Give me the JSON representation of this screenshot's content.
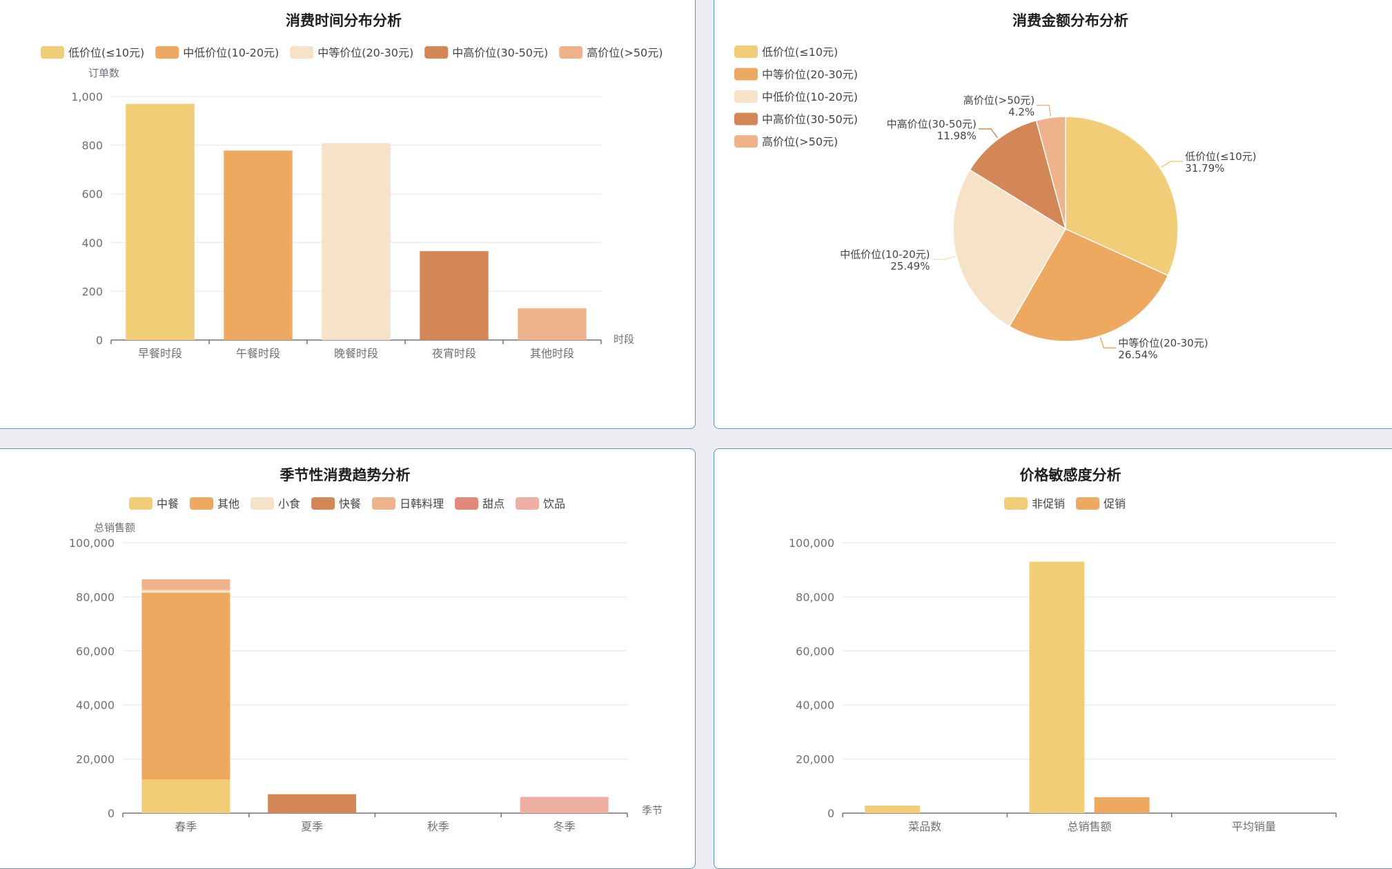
{
  "chart_data": [
    {
      "id": "time",
      "type": "bar",
      "title": "消费时间分布分析",
      "ylabel": "订单数",
      "xlabel": "时段",
      "legend": [
        "低价位(≤10元)",
        "中低价位(10-20元)",
        "中等价位(20-30元)",
        "中高价位(30-50元)",
        "高价位(>50元)"
      ],
      "categories": [
        "早餐时段",
        "午餐时段",
        "晚餐时段",
        "夜宵时段",
        "其他时段"
      ],
      "values": [
        970,
        778,
        809,
        365,
        130
      ],
      "ylim": [
        0,
        1000
      ],
      "yticks": [
        "0",
        "200",
        "400",
        "600",
        "800",
        "1,000"
      ],
      "grid": true,
      "legend_position": "top"
    },
    {
      "id": "amount",
      "type": "pie",
      "title": "消费金额分布分析",
      "legend": [
        "低价位(≤10元)",
        "中等价位(20-30元)",
        "中低价位(10-20元)",
        "中高价位(30-50元)",
        "高价位(>50元)"
      ],
      "slices": [
        {
          "name": "低价位(≤10元)",
          "value": 31.79,
          "label": "31.79%"
        },
        {
          "name": "中等价位(20-30元)",
          "value": 26.54,
          "label": "26.54%"
        },
        {
          "name": "中低价位(10-20元)",
          "value": 25.49,
          "label": "25.49%"
        },
        {
          "name": "中高价位(30-50元)",
          "value": 11.98,
          "label": "11.98%"
        },
        {
          "name": "高价位(>50元)",
          "value": 4.2,
          "label": "4.2%"
        }
      ],
      "legend_position": "top-left"
    },
    {
      "id": "season",
      "type": "bar",
      "stacked": true,
      "title": "季节性消费趋势分析",
      "ylabel": "总销售额",
      "xlabel": "季节",
      "legend": [
        "中餐",
        "其他",
        "小食",
        "快餐",
        "日韩料理",
        "甜点",
        "饮品"
      ],
      "categories": [
        "春季",
        "夏季",
        "秋季",
        "冬季"
      ],
      "series": [
        {
          "name": "中餐",
          "values": [
            12500,
            0,
            0,
            0
          ]
        },
        {
          "name": "其他",
          "values": [
            69000,
            0,
            0,
            0
          ]
        },
        {
          "name": "小食",
          "values": [
            1000,
            0,
            0,
            0
          ]
        },
        {
          "name": "快餐",
          "values": [
            0,
            7000,
            0,
            0
          ]
        },
        {
          "name": "日韩料理",
          "values": [
            4000,
            0,
            0,
            0
          ]
        },
        {
          "name": "甜点",
          "values": [
            0,
            0,
            0,
            0
          ]
        },
        {
          "name": "饮品",
          "values": [
            0,
            0,
            0,
            6000
          ]
        }
      ],
      "ylim": [
        0,
        100000
      ],
      "yticks": [
        "0",
        "20,000",
        "40,000",
        "60,000",
        "80,000",
        "100,000"
      ],
      "grid": true,
      "legend_position": "top"
    },
    {
      "id": "price",
      "type": "bar",
      "title": "价格敏感度分析",
      "legend": [
        "非促销",
        "促销"
      ],
      "categories": [
        "菜品数",
        "总销售额",
        "平均销量"
      ],
      "series": [
        {
          "name": "非促销",
          "values": [
            2800,
            93000,
            0
          ]
        },
        {
          "name": "促销",
          "values": [
            0,
            5900,
            0
          ]
        }
      ],
      "ylim": [
        0,
        100000
      ],
      "yticks": [
        "0",
        "20,000",
        "40,000",
        "60,000",
        "80,000",
        "100,000"
      ],
      "grid": true,
      "legend_position": "top"
    }
  ],
  "colors": {
    "palette": [
      "#f2cd78",
      "#eda95f",
      "#f6e2c6",
      "#d38756",
      "#efb38b",
      "#e4887a",
      "#eeb0a2"
    ],
    "panel_border": "#5b8fd6",
    "background": "#eceef3"
  }
}
